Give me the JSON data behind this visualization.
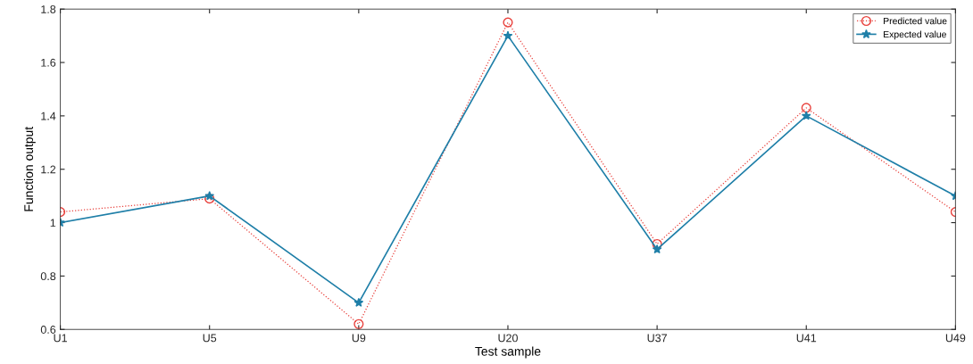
{
  "chart_data": {
    "type": "line",
    "xlabel": "Test sample",
    "ylabel": "Function output",
    "categories": [
      "U1",
      "U5",
      "U9",
      "U20",
      "U37",
      "U41",
      "U49"
    ],
    "series": [
      {
        "name": "Predicted value",
        "color": "#e8413c",
        "marker": "circle",
        "line_style": "dotted",
        "values": [
          1.04,
          1.09,
          0.62,
          1.75,
          0.92,
          1.43,
          1.04
        ]
      },
      {
        "name": "Expected value",
        "color": "#1f7fa8",
        "marker": "star",
        "line_style": "solid",
        "values": [
          1.0,
          1.1,
          0.7,
          1.7,
          0.9,
          1.4,
          1.1
        ]
      }
    ],
    "ylim": [
      0.6,
      1.8
    ],
    "yticks": [
      {
        "value": 0.6,
        "label": "0.6"
      },
      {
        "value": 0.8,
        "label": "0.8"
      },
      {
        "value": 1.0,
        "label": "1"
      },
      {
        "value": 1.2,
        "label": "1.2"
      },
      {
        "value": 1.4,
        "label": "1.4"
      },
      {
        "value": 1.6,
        "label": "1.6"
      },
      {
        "value": 1.8,
        "label": "1.8"
      }
    ],
    "grid": false,
    "legend": "top right"
  }
}
